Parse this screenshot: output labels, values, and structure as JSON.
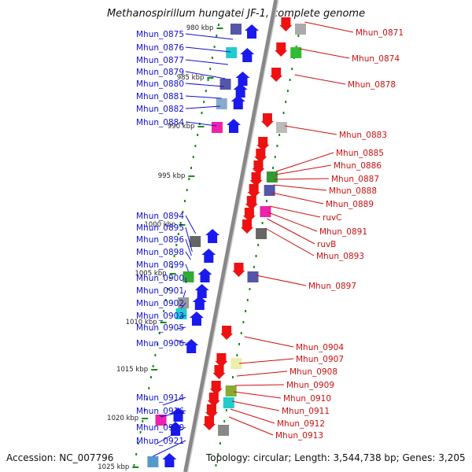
{
  "title": "Methanospirillum hungatei JF-1, complete genome",
  "footer": {
    "accession": "Accession: NC_007796",
    "summary": "Topology: circular; Length: 3,544,738 bp; Genes: 3,205"
  },
  "colors": {
    "left_label": "#1010cc",
    "right_label": "#cc1010",
    "forward_arrow": "#1a1aee",
    "reverse_arrow": "#ee1111",
    "backbone": "#888888",
    "ticks": "#1a8a1a"
  },
  "kbp_labels": [
    "980 kbp",
    "985 kbp",
    "990 kbp",
    "995 kbp",
    "1000 kbp",
    "1005 kbp",
    "1010 kbp",
    "1015 kbp",
    "1020 kbp",
    "1025 kbp"
  ],
  "left_genes": [
    "Mhun_0875",
    "Mhun_0876",
    "Mhun_0877",
    "Mhun_0879",
    "Mhun_0880",
    "Mhun_0881",
    "Mhun_0882",
    "Mhun_0884",
    "Mhun_0894",
    "Mhun_0895",
    "Mhun_0896",
    "Mhun_0898",
    "Mhun_0899",
    "Mhun_0900",
    "Mhun_0901",
    "Mhun_0902",
    "Mhun_0903",
    "Mhun_0905",
    "Mhun_0906",
    "Mhun_0914",
    "Mhun_0916",
    "Mhun_0920",
    "Mhun_0921"
  ],
  "right_genes": [
    "Mhun_0871",
    "Mhun_0874",
    "Mhun_0878",
    "Mhun_0883",
    "Mhun_0885",
    "Mhun_0886",
    "Mhun_0887",
    "Mhun_0888",
    "Mhun_0889",
    "ruvC",
    "Mhun_0891",
    "ruvB",
    "Mhun_0893",
    "Mhun_0897",
    "Mhun_0904",
    "Mhun_0907",
    "Mhun_0908",
    "Mhun_0909",
    "Mhun_0910",
    "Mhun_0911",
    "Mhun_0912",
    "Mhun_0913"
  ]
}
